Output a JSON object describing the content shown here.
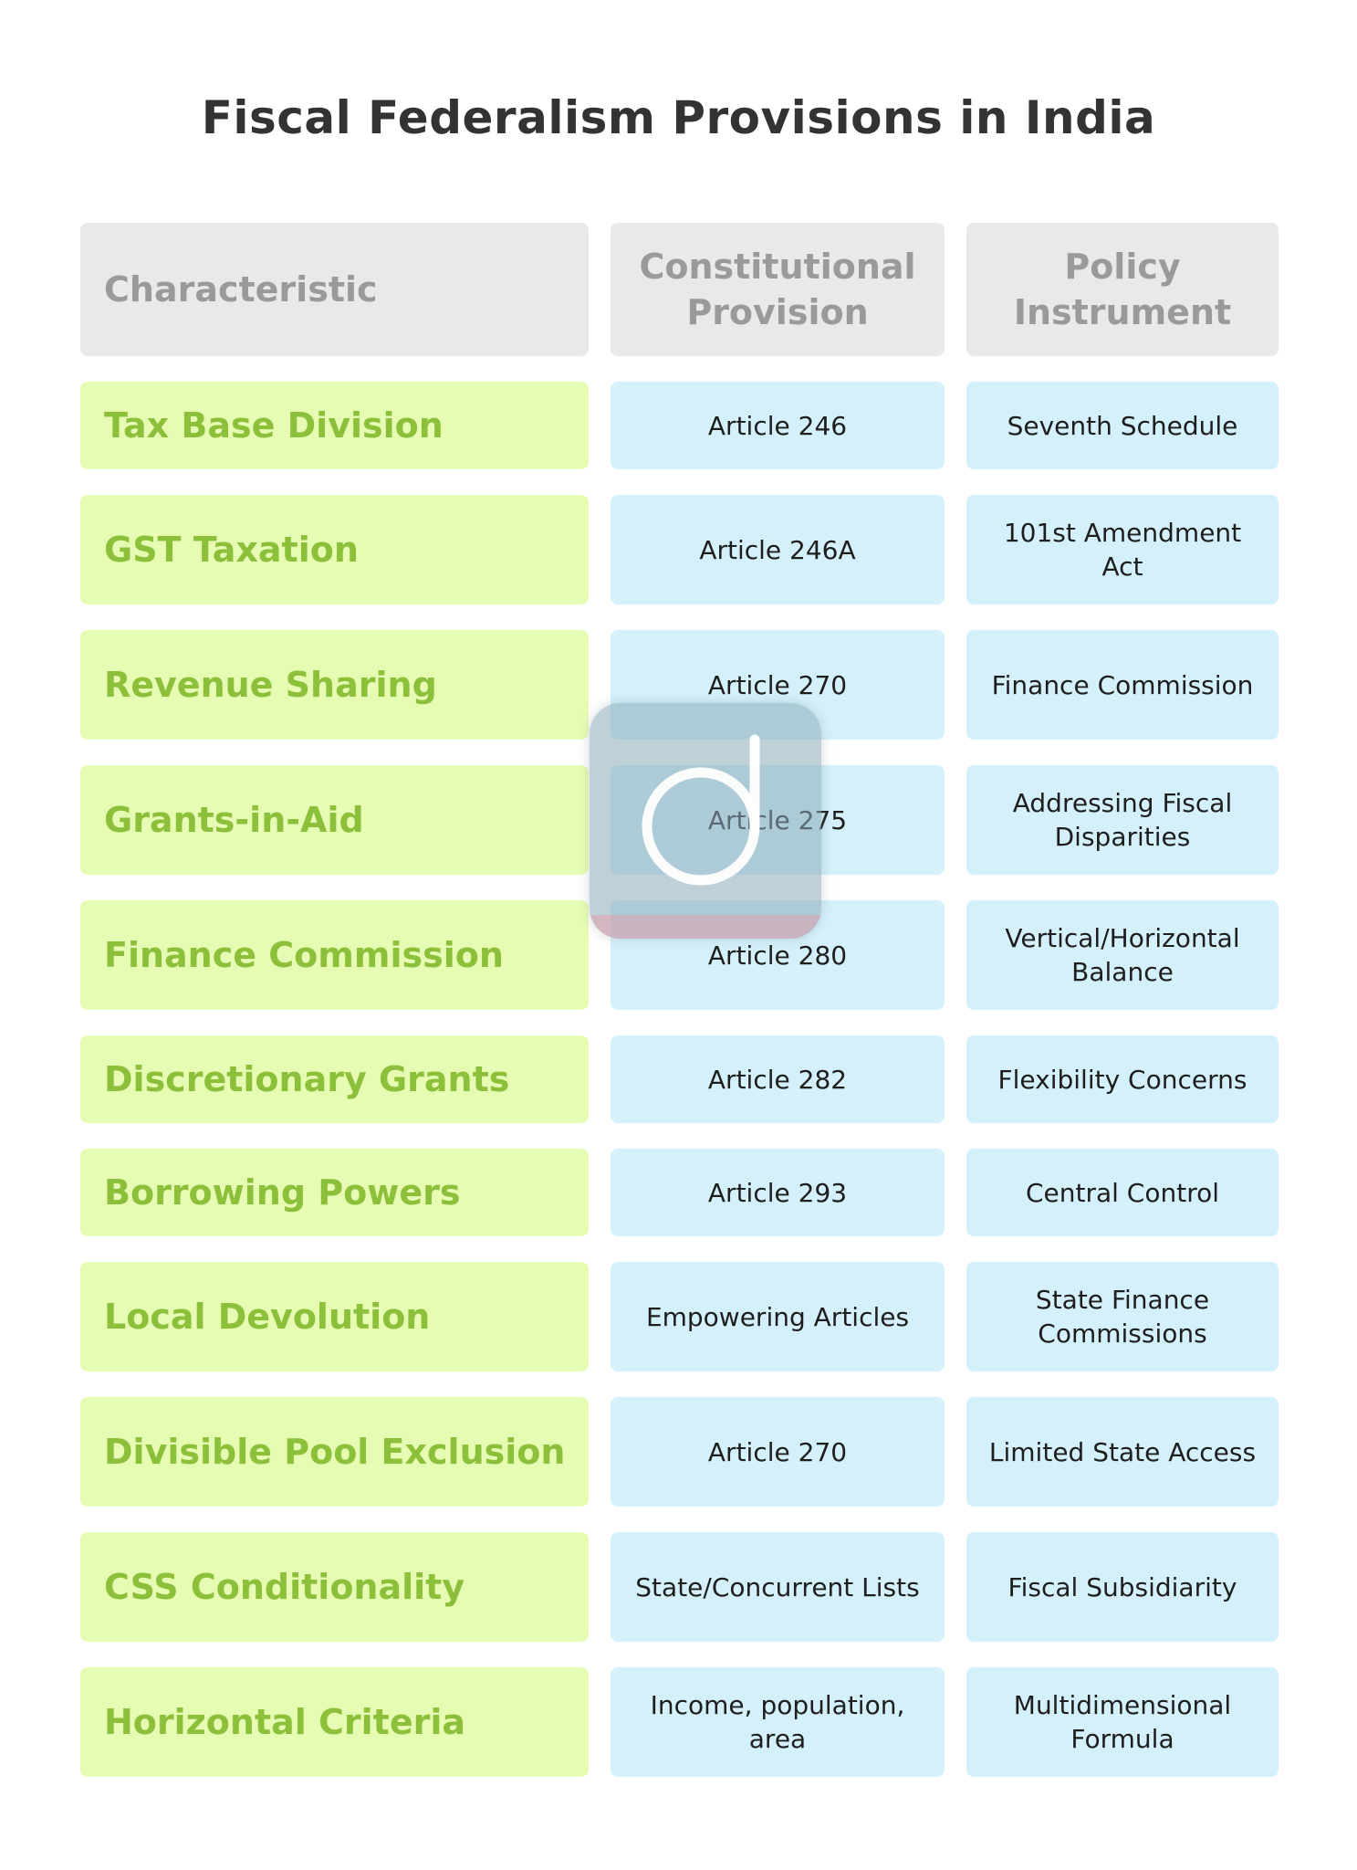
{
  "title": "Fiscal Federalism Provisions in India",
  "columns": [
    "Characteristic",
    "Constitutional Provision",
    "Policy Instrument"
  ],
  "rows": [
    {
      "characteristic": "Tax Base Division",
      "provision": "Article 246",
      "instrument": "Seventh Schedule"
    },
    {
      "characteristic": "GST Taxation",
      "provision": "Article 246A",
      "instrument": "101st Amendment Act"
    },
    {
      "characteristic": "Revenue Sharing",
      "provision": "Article 270",
      "instrument": "Finance Commission"
    },
    {
      "characteristic": "Grants-in-Aid",
      "provision": "Article 275",
      "instrument": "Addressing Fiscal Disparities"
    },
    {
      "characteristic": "Finance Commission",
      "provision": "Article 280",
      "instrument": "Vertical/Horizontal Balance"
    },
    {
      "characteristic": "Discretionary Grants",
      "provision": "Article 282",
      "instrument": "Flexibility Concerns"
    },
    {
      "characteristic": "Borrowing Powers",
      "provision": "Article 293",
      "instrument": "Central Control"
    },
    {
      "characteristic": "Local Devolution",
      "provision": "Empowering Articles",
      "instrument": "State Finance Commissions"
    },
    {
      "characteristic": "Divisible Pool Exclusion",
      "provision": "Article 270",
      "instrument": "Limited State Access"
    },
    {
      "characteristic": "CSS Conditionality",
      "provision": "State/Concurrent Lists",
      "instrument": "Fiscal Subsidiarity"
    },
    {
      "characteristic": "Horizontal Criteria",
      "provision": "Income, population, area",
      "instrument": "Multidimensional Formula"
    }
  ],
  "colors": {
    "header_bg": "#e9e9e9",
    "header_text": "#9a9a9a",
    "characteristic_bg": "#e7fcb3",
    "characteristic_text": "#8cbf3a",
    "value_bg": "#d4f1fb",
    "value_text": "#1e1e1e"
  },
  "watermark_icon": "d-logo-icon"
}
